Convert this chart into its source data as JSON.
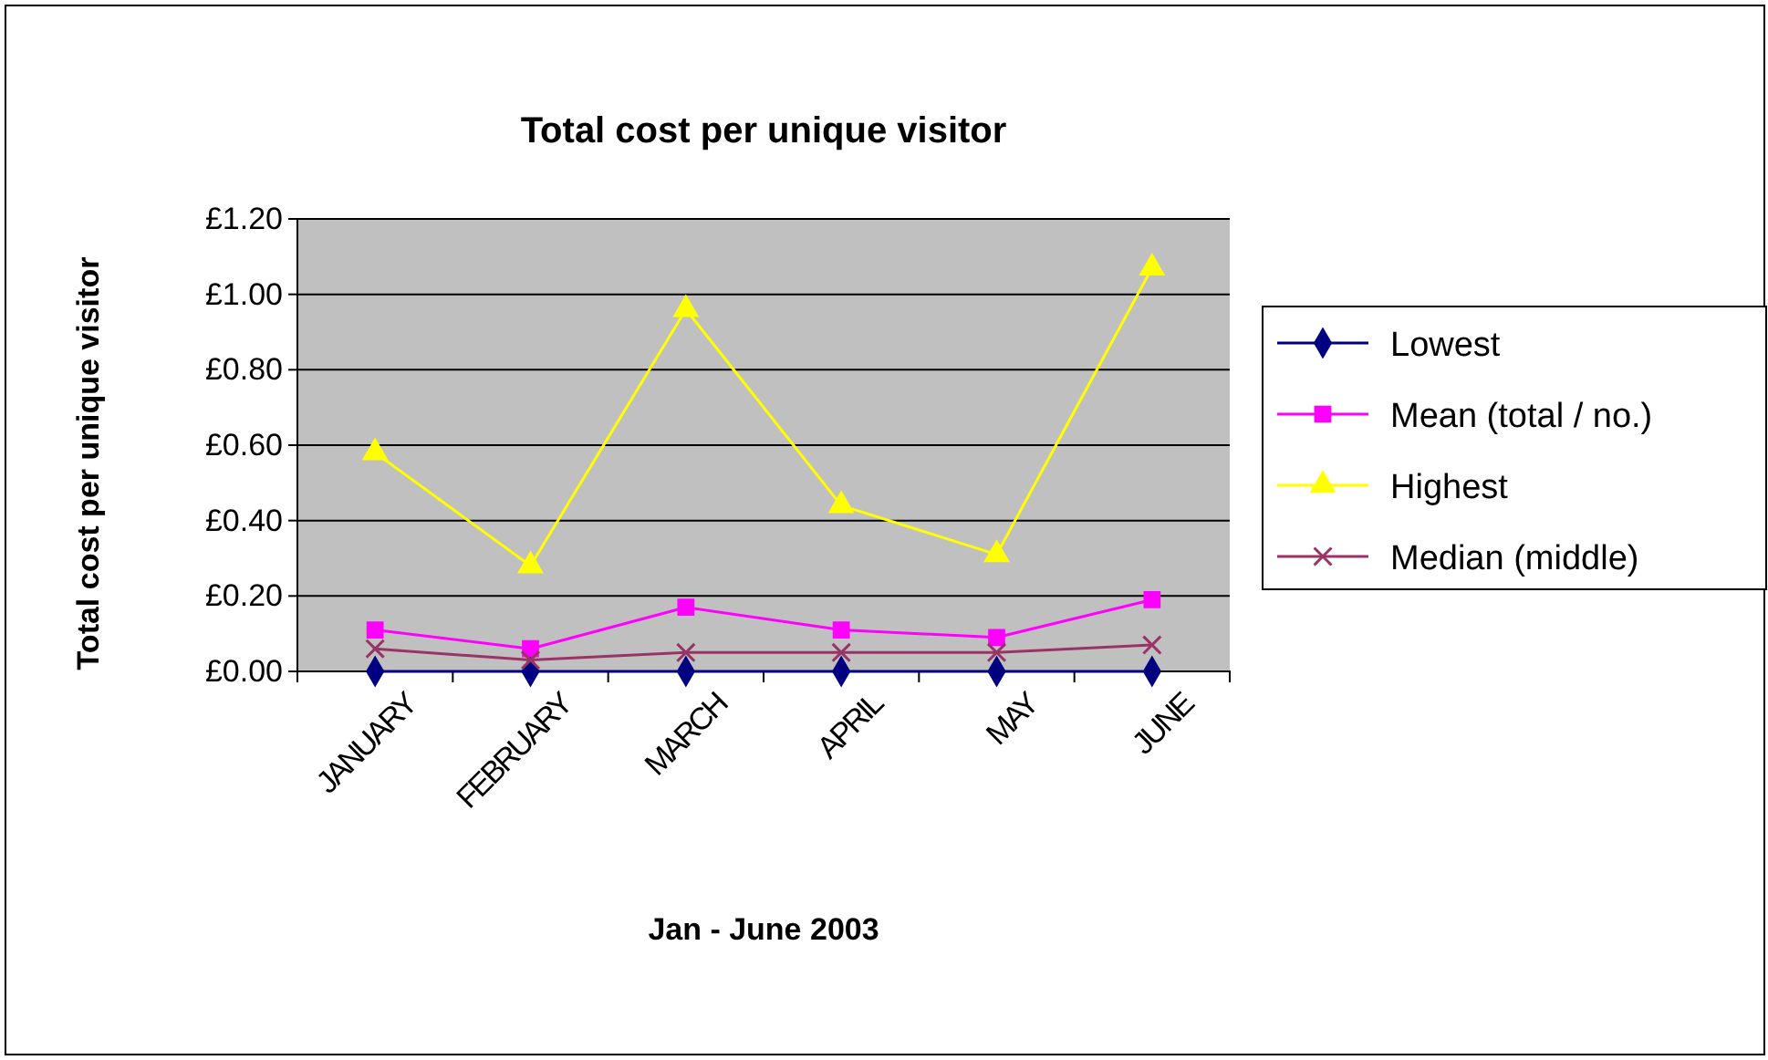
{
  "chart_data": {
    "type": "line",
    "title": "Total cost per unique visitor",
    "xlabel": "Jan - June 2003",
    "ylabel": "Total cost per unique visitor",
    "categories": [
      "JANUARY",
      "FEBRUARY",
      "MARCH",
      "APRIL",
      "MAY",
      "JUNE"
    ],
    "ylim": [
      0,
      1.2
    ],
    "yticks": [
      {
        "value": 0,
        "label": "£0.00"
      },
      {
        "value": 0.2,
        "label": "£0.20"
      },
      {
        "value": 0.4,
        "label": "£0.40"
      },
      {
        "value": 0.6,
        "label": "£0.60"
      },
      {
        "value": 0.8,
        "label": "£0.80"
      },
      {
        "value": 1,
        "label": "£1.00"
      },
      {
        "value": 1.2,
        "label": "£1.20"
      }
    ],
    "grid": "y",
    "legend": "right",
    "line_style": "solid",
    "series": [
      {
        "name": "Lowest",
        "color": "#000080",
        "marker": "diamond",
        "values": [
          0,
          0,
          0,
          0,
          0,
          0
        ]
      },
      {
        "name": "Mean (total / no.)",
        "color": "#ff00ff",
        "marker": "square",
        "values": [
          0.11,
          0.06,
          0.17,
          0.11,
          0.09,
          0.19
        ]
      },
      {
        "name": "Highest",
        "color": "#ffff00",
        "marker": "triangle",
        "values": [
          0.58,
          0.28,
          0.96,
          0.44,
          0.31,
          1.07
        ]
      },
      {
        "name": "Median (middle)",
        "color": "#993366",
        "marker": "cross",
        "values": [
          0.06,
          0.03,
          0.05,
          0.05,
          0.05,
          0.07
        ]
      }
    ]
  }
}
